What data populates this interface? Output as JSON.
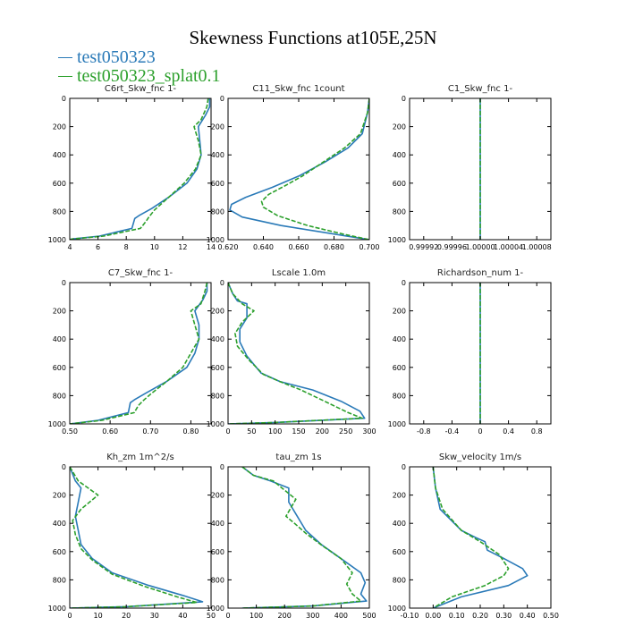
{
  "title": "Skewness Functions at105E,25N",
  "legend": [
    {
      "name": "test050323",
      "color": "#2a7ab8"
    },
    {
      "name": "test050323_splat0.1",
      "color": "#2ca02c"
    }
  ],
  "chart_data": [
    {
      "type": "line",
      "title": "C6rt_Skw_fnc  1-",
      "xlim": [
        4,
        14
      ],
      "xticks": [
        4,
        6,
        8,
        10,
        12,
        14
      ],
      "xticklabels": [
        "4",
        "6",
        "8",
        "10",
        "12",
        "14"
      ],
      "ylim": [
        1000,
        0
      ],
      "yticks": [
        0,
        200,
        400,
        600,
        800,
        1000
      ],
      "yticklabels": [
        "0",
        "200",
        "400",
        "600",
        "800",
        "1000"
      ],
      "series": [
        {
          "name": "test050323",
          "color": "#2a7ab8",
          "x": [
            13.9,
            13.9,
            13.6,
            13.1,
            13.2,
            13.3,
            13.0,
            12.3,
            11.0,
            9.8,
            8.9,
            8.6,
            8.4,
            6.1,
            4.2,
            4.0
          ],
          "y": [
            0,
            60,
            120,
            200,
            300,
            400,
            500,
            600,
            700,
            780,
            830,
            850,
            920,
            975,
            995,
            1000
          ]
        },
        {
          "name": "test050323_splat0.1",
          "color": "#2ca02c",
          "dash": true,
          "x": [
            13.8,
            13.7,
            13.3,
            12.8,
            13.1,
            13.3,
            12.9,
            12.1,
            11.0,
            10.0,
            9.6,
            9.4,
            9.0,
            6.4,
            4.2,
            4.0
          ],
          "y": [
            0,
            60,
            150,
            200,
            300,
            400,
            500,
            600,
            700,
            790,
            840,
            870,
            920,
            975,
            995,
            1000
          ]
        }
      ]
    },
    {
      "type": "line",
      "title": "C11_Skw_fnc  1count",
      "xlim": [
        0.62,
        0.7
      ],
      "xticks": [
        0.62,
        0.64,
        0.66,
        0.68,
        0.7
      ],
      "xticklabels": [
        "0.620",
        "0.640",
        "0.660",
        "0.680",
        "0.700"
      ],
      "ylim": [
        1000,
        0
      ],
      "yticks": [
        0,
        200,
        400,
        600,
        800,
        1000
      ],
      "yticklabels": [
        "0",
        "200",
        "400",
        "600",
        "800",
        "1000"
      ],
      "series": [
        {
          "name": "test050323",
          "color": "#2a7ab8",
          "x": [
            0.7,
            0.699,
            0.696,
            0.688,
            0.675,
            0.66,
            0.645,
            0.63,
            0.622,
            0.621,
            0.628,
            0.65,
            0.68,
            0.7
          ],
          "y": [
            0,
            100,
            250,
            350,
            450,
            550,
            630,
            700,
            750,
            790,
            840,
            900,
            960,
            1000
          ]
        },
        {
          "name": "test050323_splat0.1",
          "color": "#2ca02c",
          "dash": true,
          "x": [
            0.7,
            0.699,
            0.695,
            0.686,
            0.674,
            0.662,
            0.652,
            0.643,
            0.639,
            0.64,
            0.648,
            0.665,
            0.685,
            0.7
          ],
          "y": [
            0,
            100,
            250,
            350,
            450,
            550,
            620,
            680,
            730,
            770,
            830,
            900,
            960,
            1000
          ]
        }
      ]
    },
    {
      "type": "line",
      "title": "C1_Skw_fnc  1-",
      "xlim": [
        0.9999,
        1.0001
      ],
      "xticks": [
        0.99992,
        0.99996,
        1.0,
        1.00004,
        1.00008
      ],
      "xticklabels": [
        "0.99992",
        "0.99996",
        "1.00000",
        "1.00004",
        "1.00008"
      ],
      "ylim": [
        1000,
        0
      ],
      "yticks": [
        0,
        200,
        400,
        600,
        800,
        1000
      ],
      "yticklabels": [
        "0",
        "200",
        "400",
        "600",
        "800",
        "1000"
      ],
      "series": [
        {
          "name": "test050323",
          "color": "#2a7ab8",
          "x": [
            1.0,
            1.0
          ],
          "y": [
            0,
            1000
          ]
        },
        {
          "name": "test050323_splat0.1",
          "color": "#2ca02c",
          "dash": true,
          "x": [
            1.0,
            1.0
          ],
          "y": [
            0,
            1000
          ]
        }
      ]
    },
    {
      "type": "line",
      "title": "C7_Skw_fnc  1-",
      "xlim": [
        0.5,
        0.85
      ],
      "xticks": [
        0.5,
        0.6,
        0.7,
        0.8
      ],
      "xticklabels": [
        "0.50",
        "0.60",
        "0.70",
        "0.80"
      ],
      "ylim": [
        1000,
        0
      ],
      "yticks": [
        0,
        200,
        400,
        600,
        800,
        1000
      ],
      "yticklabels": [
        "0",
        "200",
        "400",
        "600",
        "800",
        "1000"
      ],
      "series": [
        {
          "name": "test050323",
          "color": "#2a7ab8",
          "x": [
            0.84,
            0.84,
            0.83,
            0.81,
            0.82,
            0.82,
            0.81,
            0.79,
            0.74,
            0.69,
            0.66,
            0.65,
            0.645,
            0.57,
            0.5
          ],
          "y": [
            0,
            60,
            120,
            200,
            300,
            400,
            500,
            600,
            700,
            780,
            830,
            850,
            920,
            975,
            1000
          ]
        },
        {
          "name": "test050323_splat0.1",
          "color": "#2ca02c",
          "dash": true,
          "x": [
            0.84,
            0.835,
            0.825,
            0.8,
            0.81,
            0.82,
            0.8,
            0.78,
            0.74,
            0.7,
            0.68,
            0.67,
            0.66,
            0.58,
            0.5
          ],
          "y": [
            0,
            60,
            150,
            200,
            300,
            400,
            500,
            600,
            700,
            790,
            840,
            870,
            920,
            975,
            1000
          ]
        }
      ]
    },
    {
      "type": "line",
      "title": "Lscale  1.0m",
      "xlim": [
        0,
        300
      ],
      "xticks": [
        0,
        50,
        100,
        150,
        200,
        250,
        300
      ],
      "xticklabels": [
        "0",
        "50",
        "100",
        "150",
        "200",
        "250",
        "300"
      ],
      "ylim": [
        1000,
        0
      ],
      "yticks": [
        0,
        200,
        400,
        600,
        800,
        1000
      ],
      "yticklabels": [
        "0",
        "200",
        "400",
        "600",
        "800",
        "1000"
      ],
      "series": [
        {
          "name": "test050323",
          "color": "#2a7ab8",
          "x": [
            0,
            10,
            20,
            40,
            40,
            25,
            25,
            40,
            70,
            110,
            180,
            240,
            280,
            290,
            100,
            0
          ],
          "y": [
            0,
            80,
            130,
            150,
            250,
            330,
            420,
            520,
            640,
            700,
            760,
            840,
            910,
            960,
            990,
            1000
          ]
        },
        {
          "name": "test050323_splat0.1",
          "color": "#2ca02c",
          "dash": true,
          "x": [
            0,
            10,
            30,
            55,
            30,
            15,
            20,
            45,
            75,
            110,
            155,
            205,
            255,
            285,
            100,
            0
          ],
          "y": [
            0,
            80,
            150,
            200,
            280,
            360,
            450,
            550,
            650,
            700,
            760,
            840,
            920,
            960,
            990,
            1000
          ]
        }
      ]
    },
    {
      "type": "line",
      "title": "Richardson_num  1-",
      "xlim": [
        -1.0,
        1.0
      ],
      "xticks": [
        -0.8,
        -0.4,
        0,
        0.4,
        0.8
      ],
      "xticklabels": [
        "-0.8",
        "-0.4",
        "0",
        "0.4",
        "0.8"
      ],
      "ylim": [
        1000,
        0
      ],
      "yticks": [
        0,
        200,
        400,
        600,
        800,
        1000
      ],
      "yticklabels": [
        "0",
        "200",
        "400",
        "600",
        "800",
        "1000"
      ],
      "series": [
        {
          "name": "test050323",
          "color": "#2a7ab8",
          "x": [
            0,
            0
          ],
          "y": [
            0,
            1000
          ]
        },
        {
          "name": "test050323_splat0.1",
          "color": "#2ca02c",
          "dash": true,
          "x": [
            0,
            0
          ],
          "y": [
            0,
            1000
          ]
        }
      ]
    },
    {
      "type": "line",
      "title": "Kh_zm  1m^2/s",
      "xlim": [
        0,
        50
      ],
      "xticks": [
        0,
        10,
        20,
        30,
        40,
        50
      ],
      "xticklabels": [
        "0",
        "10",
        "20",
        "30",
        "40",
        "50"
      ],
      "ylim": [
        1000,
        0
      ],
      "yticks": [
        0,
        200,
        400,
        600,
        800,
        1000
      ],
      "yticklabels": [
        "0",
        "200",
        "400",
        "600",
        "800",
        "1000"
      ],
      "series": [
        {
          "name": "test050323",
          "color": "#2a7ab8",
          "x": [
            0,
            2,
            4,
            3,
            2,
            3,
            4,
            8,
            15,
            28,
            40,
            47,
            20,
            0
          ],
          "y": [
            0,
            100,
            150,
            250,
            350,
            450,
            550,
            650,
            750,
            840,
            910,
            955,
            990,
            1000
          ]
        },
        {
          "name": "test050323_splat0.1",
          "color": "#2ca02c",
          "dash": true,
          "x": [
            0,
            3,
            10,
            4,
            1,
            2,
            4,
            8,
            15,
            27,
            38,
            45,
            20,
            0
          ],
          "y": [
            0,
            100,
            200,
            300,
            380,
            480,
            580,
            660,
            760,
            850,
            920,
            960,
            990,
            1000
          ]
        }
      ]
    },
    {
      "type": "line",
      "title": "tau_zm  1s",
      "xlim": [
        0,
        500
      ],
      "xticks": [
        0,
        100,
        200,
        300,
        400,
        500
      ],
      "xticklabels": [
        "0",
        "100",
        "200",
        "300",
        "400",
        "500"
      ],
      "ylim": [
        1000,
        0
      ],
      "yticks": [
        0,
        200,
        400,
        600,
        800,
        1000
      ],
      "yticklabels": [
        "0",
        "200",
        "400",
        "600",
        "800",
        "1000"
      ],
      "series": [
        {
          "name": "test050323",
          "color": "#2a7ab8",
          "x": [
            50,
            90,
            150,
            215,
            215,
            245,
            275,
            330,
            400,
            470,
            485,
            470,
            490,
            300,
            50
          ],
          "y": [
            0,
            60,
            100,
            150,
            250,
            350,
            450,
            550,
            650,
            750,
            820,
            900,
            950,
            985,
            1000
          ]
        },
        {
          "name": "test050323_splat0.1",
          "color": "#2ca02c",
          "dash": true,
          "x": [
            50,
            90,
            160,
            240,
            205,
            235,
            275,
            335,
            400,
            440,
            420,
            440,
            470,
            300,
            50
          ],
          "y": [
            0,
            60,
            100,
            230,
            350,
            400,
            470,
            560,
            650,
            750,
            830,
            900,
            950,
            985,
            1000
          ]
        }
      ]
    },
    {
      "type": "line",
      "title": "Skw_velocity  1m/s",
      "xlim": [
        -0.1,
        0.5
      ],
      "xticks": [
        -0.1,
        0.0,
        0.1,
        0.2,
        0.3,
        0.4,
        0.5
      ],
      "xticklabels": [
        "-0.10",
        "0.00",
        "0.10",
        "0.20",
        "0.30",
        "0.40",
        "0.50"
      ],
      "ylim": [
        1000,
        0
      ],
      "yticks": [
        0,
        200,
        400,
        600,
        800,
        1000
      ],
      "yticklabels": [
        "0",
        "200",
        "400",
        "600",
        "800",
        "1000"
      ],
      "series": [
        {
          "name": "test050323",
          "color": "#2a7ab8",
          "x": [
            0.0,
            0.01,
            0.03,
            0.12,
            0.18,
            0.22,
            0.23,
            0.29,
            0.38,
            0.4,
            0.32,
            0.12,
            0.0
          ],
          "y": [
            0,
            150,
            300,
            450,
            500,
            530,
            590,
            640,
            720,
            770,
            840,
            920,
            1000
          ]
        },
        {
          "name": "test050323_splat0.1",
          "color": "#2ca02c",
          "dash": true,
          "x": [
            0.0,
            0.01,
            0.04,
            0.12,
            0.2,
            0.28,
            0.32,
            0.3,
            0.22,
            0.08,
            0.0
          ],
          "y": [
            0,
            150,
            300,
            450,
            530,
            620,
            720,
            770,
            840,
            920,
            1000
          ]
        }
      ]
    }
  ]
}
